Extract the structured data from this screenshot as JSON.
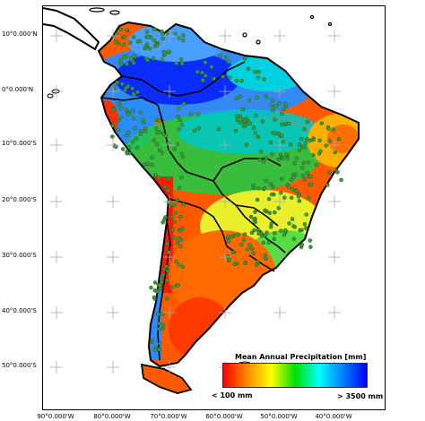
{
  "map": {
    "lat_labels": [
      "10°0.000'N",
      "0°0.000'N",
      "10°0.000'S",
      "20°0.000'S",
      "30°0.000'S",
      "40°0.000'S",
      "50°0.000'S"
    ],
    "lon_labels": [
      "90°0.000'W",
      "80°0.000'W",
      "70°0.000'W",
      "60°0.000'W",
      "50°0.000'W",
      "40°0.000'W"
    ]
  },
  "legend": {
    "title": "Mean Annual Precipitation [mm]",
    "min_label": "< 100 mm",
    "max_label": "> 3500 mm",
    "colors": [
      "#ff0000",
      "#ff8800",
      "#ffff00",
      "#00e000",
      "#00ffff",
      "#0080ff",
      "#0000ff"
    ]
  },
  "style": {
    "station_color": "#3f9a3f",
    "coast_color": "#000000"
  }
}
